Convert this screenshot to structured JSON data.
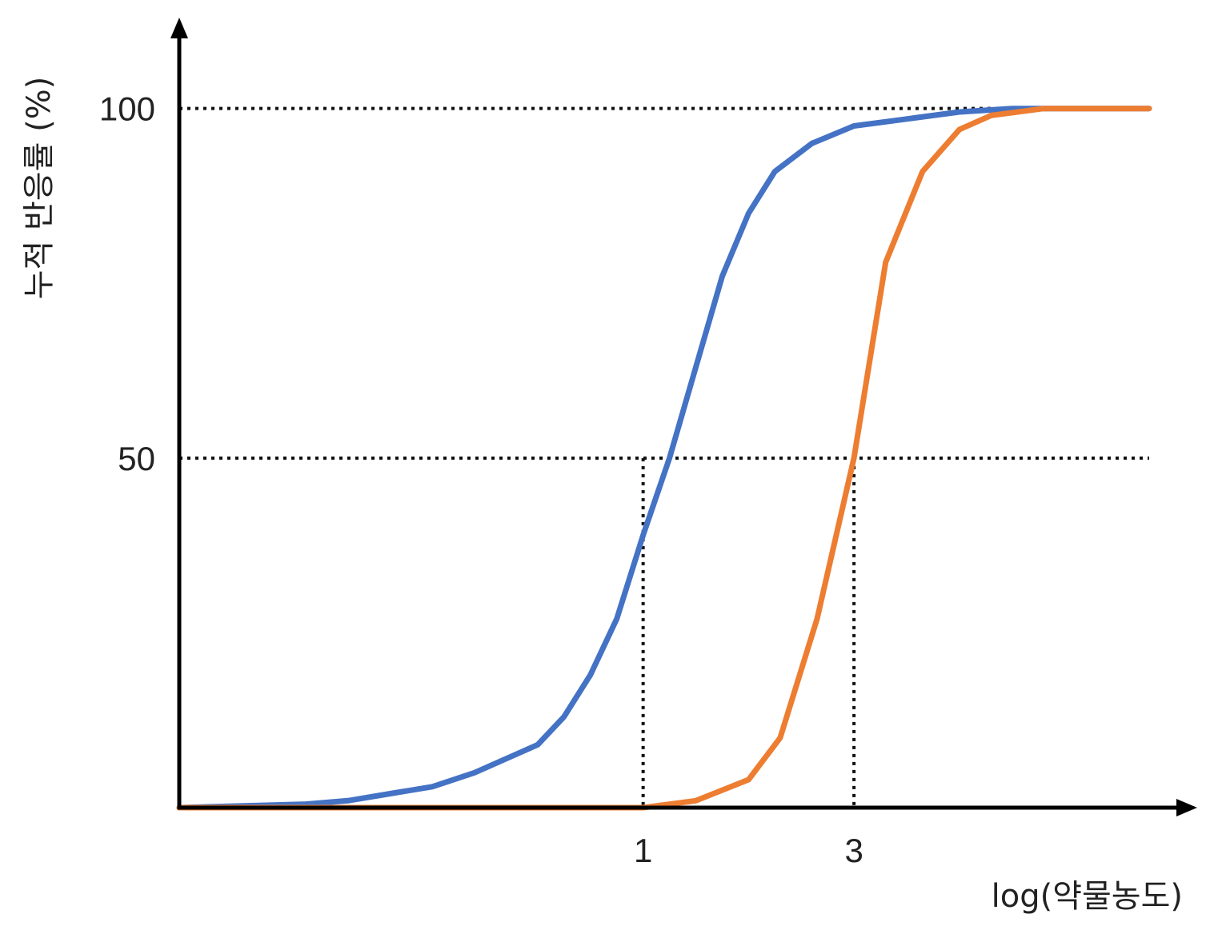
{
  "chart_data": {
    "type": "line",
    "xlabel": "log(약물농도)",
    "ylabel": "누적 반응률 (%)",
    "x_ticks": [
      {
        "x": 1,
        "label": "1"
      },
      {
        "x": 3,
        "label": "3"
      }
    ],
    "y_ticks": [
      {
        "y": 50,
        "label": "50"
      },
      {
        "y": 100,
        "label": "100"
      }
    ],
    "xlim": [
      -3.4,
      5.8
    ],
    "ylim": [
      0,
      113
    ],
    "grid": false,
    "reference_lines": {
      "horizontal": [
        50,
        100
      ],
      "vertical": [
        1,
        3
      ]
    },
    "series": [
      {
        "color": "#4472C4",
        "x": [
          -3.4,
          -2.2,
          -1.8,
          -1.4,
          -1.0,
          -0.6,
          -0.3,
          0.0,
          0.25,
          0.5,
          0.75,
          1.0,
          1.25,
          1.5,
          1.75,
          2.0,
          2.25,
          2.6,
          3.0,
          3.5,
          4.0,
          4.5,
          5.0,
          5.8
        ],
        "y": [
          0,
          0.5,
          1,
          2,
          3,
          5,
          7,
          9,
          13,
          19,
          27,
          39,
          50,
          63,
          76,
          85,
          91,
          95,
          97.5,
          98.5,
          99.5,
          100,
          100,
          100
        ]
      },
      {
        "color": "#ED7D31",
        "x": [
          -3.4,
          -1.0,
          0.0,
          0.5,
          1.0,
          1.5,
          2.0,
          2.3,
          2.65,
          3.0,
          3.3,
          3.65,
          4.0,
          4.3,
          4.8,
          5.3,
          5.8
        ],
        "y": [
          0,
          0,
          0,
          0,
          0,
          1,
          4,
          10,
          27,
          50,
          78,
          91,
          97,
          99,
          100,
          100,
          100
        ]
      }
    ]
  }
}
